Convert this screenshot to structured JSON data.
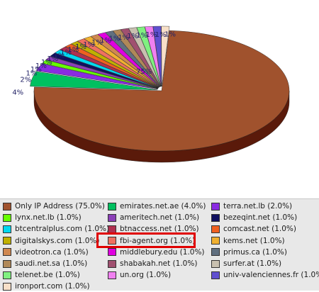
{
  "chart_data": {
    "type": "pie",
    "title": "",
    "slices": [
      {
        "label": "Only IP Address (75.0%)",
        "value": 75.0,
        "pct_label": "75%",
        "color": "#a0522d",
        "side": "#5a1a0a"
      },
      {
        "label": "emirates.net.ae (4.0%)",
        "value": 4.0,
        "pct_label": "4%",
        "color": "#00c060",
        "side": "#006a30"
      },
      {
        "label": "terra.net.lb (2.0%)",
        "value": 2.0,
        "pct_label": "2%",
        "color": "#8a2be2",
        "side": "#45157a"
      },
      {
        "label": "lynx.net.lb (1.0%)",
        "value": 1.0,
        "pct_label": "1%",
        "color": "#66ff00",
        "side": "#338000"
      },
      {
        "label": "ameritech.net (1.0%)",
        "value": 1.0,
        "pct_label": "1%",
        "color": "#8b3fb8",
        "side": "#452060"
      },
      {
        "label": "bezeqint.net (1.0%)",
        "value": 1.0,
        "pct_label": "1%",
        "color": "#101060",
        "side": "#080830"
      },
      {
        "label": "btcentralplus.com (1.0%)",
        "value": 1.0,
        "pct_label": "1%",
        "color": "#00d8f0",
        "side": "#006c78"
      },
      {
        "label": "btnaccess.net (1.0%)",
        "value": 1.0,
        "pct_label": "1%",
        "color": "#b03050",
        "side": "#581828"
      },
      {
        "label": "comcast.net (1.0%)",
        "value": 1.0,
        "pct_label": "1%",
        "color": "#f06020",
        "side": "#783010"
      },
      {
        "label": "digitalskys.com (1.0%)",
        "value": 1.0,
        "pct_label": "1%",
        "color": "#c0b000",
        "side": "#605800"
      },
      {
        "label": "fbi-agent.org (1.0%)",
        "value": 1.0,
        "pct_label": "1%",
        "color": "#f07060",
        "side": "#783830"
      },
      {
        "label": "kems.net (1.0%)",
        "value": 1.0,
        "pct_label": "1%",
        "color": "#f0b030",
        "side": "#785818"
      },
      {
        "label": "videotron.ca (1.0%)",
        "value": 1.0,
        "pct_label": "1%",
        "color": "#d08850",
        "side": "#684428"
      },
      {
        "label": "middlebury.edu (1.0%)",
        "value": 1.0,
        "pct_label": "1%",
        "color": "#e000e0",
        "side": "#700070"
      },
      {
        "label": "primus.ca (1.0%)",
        "value": 1.0,
        "pct_label": "1%",
        "color": "#607080",
        "side": "#303840"
      },
      {
        "label": "saudi.net.sa (1.0%)",
        "value": 1.0,
        "pct_label": "1%",
        "color": "#b08858",
        "side": "#58442c"
      },
      {
        "label": "shabakah.net (1.0%)",
        "value": 1.0,
        "pct_label": "1%",
        "color": "#a05070",
        "side": "#502838"
      },
      {
        "label": "surfer.at (1.0%)",
        "value": 1.0,
        "pct_label": "1%",
        "color": "#c8c0b0",
        "side": "#646058"
      },
      {
        "label": "telenet.be (1.0%)",
        "value": 1.0,
        "pct_label": "1%",
        "color": "#80f080",
        "side": "#407840"
      },
      {
        "label": "un.org (1.0%)",
        "value": 1.0,
        "pct_label": "1%",
        "color": "#f080f0",
        "side": "#784078"
      },
      {
        "label": "univ-valenciennes.fr (1.0%)",
        "value": 1.0,
        "pct_label": "1%",
        "color": "#6050d0",
        "side": "#302868"
      },
      {
        "label": "ironport.com (1.0%)",
        "value": 1.0,
        "pct_label": "1%",
        "color": "#f8e0c8",
        "side": "#7c7064"
      }
    ],
    "legend_order": [
      0,
      1,
      2,
      3,
      4,
      5,
      6,
      7,
      8,
      9,
      10,
      11,
      12,
      13,
      14,
      15,
      16,
      17,
      18,
      19,
      20,
      21
    ],
    "legend_placement": "bottom",
    "highlighted": "fbi-agent.org (1.0%)"
  }
}
